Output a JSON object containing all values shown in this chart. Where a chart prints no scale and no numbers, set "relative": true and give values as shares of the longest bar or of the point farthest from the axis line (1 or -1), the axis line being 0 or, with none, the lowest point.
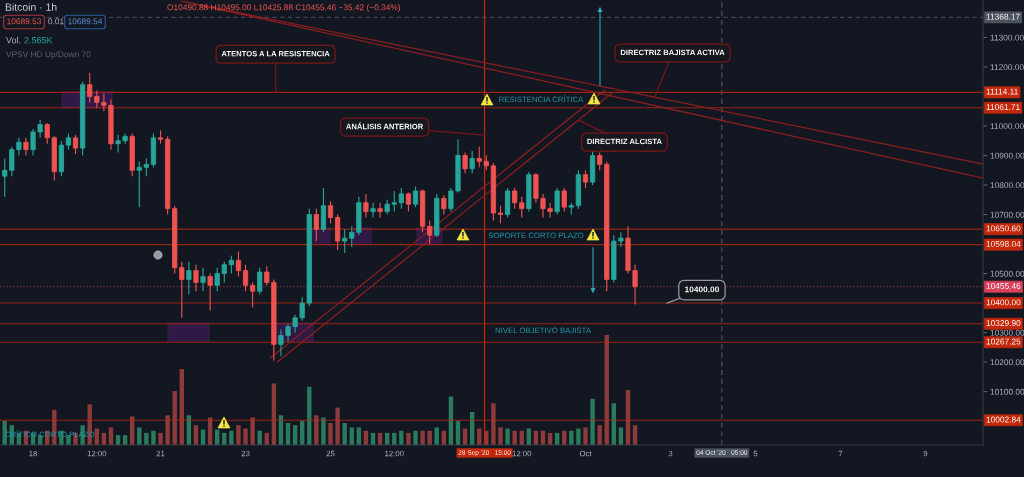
{
  "chart_data": [
    {
      "type": "candlestick",
      "title": "Bitcoin · 1h",
      "x": [
        "2020-09-17T08:00",
        "2020-09-17T12:00",
        "2020-09-17T16:00",
        "2020-09-17T20:00",
        "2020-09-18T00:00",
        "2020-09-18T04:00",
        "2020-09-18T08:00",
        "2020-09-18T12:00",
        "2020-09-18T16:00",
        "2020-09-18T20:00",
        "2020-09-19T00:00",
        "2020-09-19T04:00",
        "2020-09-19T08:00",
        "2020-09-19T12:00",
        "2020-09-19T16:00",
        "2020-09-19T20:00",
        "2020-09-20T00:00",
        "2020-09-20T04:00",
        "2020-09-20T08:00",
        "2020-09-20T12:00",
        "2020-09-20T16:00",
        "2020-09-20T20:00",
        "2020-09-21T00:00",
        "2020-09-21T04:00",
        "2020-09-21T08:00",
        "2020-09-21T12:00",
        "2020-09-21T16:00",
        "2020-09-21T20:00",
        "2020-09-22T00:00",
        "2020-09-22T04:00",
        "2020-09-22T08:00",
        "2020-09-22T12:00",
        "2020-09-22T16:00",
        "2020-09-22T20:00",
        "2020-09-23T00:00",
        "2020-09-23T04:00",
        "2020-09-23T08:00",
        "2020-09-23T12:00",
        "2020-09-23T16:00",
        "2020-09-23T20:00",
        "2020-09-24T00:00",
        "2020-09-24T04:00",
        "2020-09-24T08:00",
        "2020-09-24T12:00",
        "2020-09-24T16:00",
        "2020-09-24T20:00",
        "2020-09-25T00:00",
        "2020-09-25T04:00",
        "2020-09-25T08:00",
        "2020-09-25T12:00",
        "2020-09-25T16:00",
        "2020-09-25T20:00",
        "2020-09-26T00:00",
        "2020-09-26T04:00",
        "2020-09-26T08:00",
        "2020-09-26T12:00",
        "2020-09-26T16:00",
        "2020-09-26T20:00",
        "2020-09-27T00:00",
        "2020-09-27T04:00",
        "2020-09-27T08:00",
        "2020-09-27T12:00",
        "2020-09-27T16:00",
        "2020-09-27T20:00",
        "2020-09-28T00:00",
        "2020-09-28T04:00",
        "2020-09-28T08:00",
        "2020-09-28T12:00",
        "2020-09-28T16:00",
        "2020-09-28T20:00",
        "2020-09-29T00:00",
        "2020-09-29T04:00",
        "2020-09-29T08:00",
        "2020-09-29T12:00",
        "2020-09-29T16:00",
        "2020-09-29T20:00",
        "2020-09-30T00:00",
        "2020-09-30T04:00",
        "2020-09-30T08:00",
        "2020-09-30T12:00",
        "2020-09-30T16:00",
        "2020-09-30T20:00",
        "2020-10-01T00:00",
        "2020-10-01T04:00",
        "2020-10-01T08:00",
        "2020-10-01T12:00",
        "2020-10-01T16:00",
        "2020-10-01T20:00",
        "2020-10-02T00:00",
        "2020-10-02T04:00"
      ],
      "ohlc": [
        [
          10830,
          10890,
          10760,
          10850
        ],
        [
          10850,
          10930,
          10830,
          10920
        ],
        [
          10920,
          10960,
          10900,
          10945
        ],
        [
          10945,
          10960,
          10900,
          10920
        ],
        [
          10920,
          10990,
          10900,
          10980
        ],
        [
          10980,
          11020,
          10960,
          11005
        ],
        [
          11005,
          11010,
          10940,
          10960
        ],
        [
          10960,
          10965,
          10815,
          10845
        ],
        [
          10845,
          10950,
          10830,
          10935
        ],
        [
          10935,
          10975,
          10920,
          10960
        ],
        [
          10960,
          10970,
          10905,
          10925
        ],
        [
          10925,
          11150,
          10900,
          11140
        ],
        [
          11140,
          11180,
          11080,
          11100
        ],
        [
          11100,
          11120,
          11060,
          11080
        ],
        [
          11080,
          11110,
          11050,
          11070
        ],
        [
          11070,
          11090,
          10920,
          10940
        ],
        [
          10940,
          10970,
          10910,
          10950
        ],
        [
          10950,
          10975,
          10940,
          10965
        ],
        [
          10965,
          10975,
          10830,
          10850
        ],
        [
          10850,
          10880,
          10725,
          10860
        ],
        [
          10860,
          10890,
          10830,
          10870
        ],
        [
          10870,
          10975,
          10860,
          10960
        ],
        [
          10960,
          10985,
          10940,
          10955
        ],
        [
          10955,
          10965,
          10700,
          10720
        ],
        [
          10720,
          10730,
          10500,
          10520
        ],
        [
          10520,
          10540,
          10350,
          10480
        ],
        [
          10480,
          10540,
          10430,
          10510
        ],
        [
          10510,
          10530,
          10440,
          10470
        ],
        [
          10470,
          10520,
          10440,
          10490
        ],
        [
          10490,
          10500,
          10375,
          10460
        ],
        [
          10460,
          10520,
          10440,
          10500
        ],
        [
          10500,
          10540,
          10470,
          10530
        ],
        [
          10530,
          10560,
          10500,
          10545
        ],
        [
          10545,
          10575,
          10490,
          10510
        ],
        [
          10510,
          10530,
          10440,
          10460
        ],
        [
          10460,
          10470,
          10385,
          10440
        ],
        [
          10440,
          10520,
          10430,
          10505
        ],
        [
          10505,
          10525,
          10460,
          10470
        ],
        [
          10470,
          10480,
          10205,
          10260
        ],
        [
          10260,
          10310,
          10220,
          10290
        ],
        [
          10290,
          10330,
          10270,
          10320
        ],
        [
          10320,
          10360,
          10300,
          10350
        ],
        [
          10350,
          10420,
          10340,
          10400
        ],
        [
          10400,
          10720,
          10390,
          10700
        ],
        [
          10700,
          10720,
          10610,
          10650
        ],
        [
          10650,
          10790,
          10640,
          10730
        ],
        [
          10730,
          10745,
          10670,
          10690
        ],
        [
          10690,
          10700,
          10580,
          10610
        ],
        [
          10610,
          10650,
          10570,
          10620
        ],
        [
          10620,
          10660,
          10590,
          10640
        ],
        [
          10640,
          10760,
          10630,
          10740
        ],
        [
          10740,
          10770,
          10690,
          10710
        ],
        [
          10710,
          10740,
          10690,
          10720
        ],
        [
          10720,
          10740,
          10690,
          10710
        ],
        [
          10710,
          10750,
          10700,
          10735
        ],
        [
          10735,
          10780,
          10710,
          10740
        ],
        [
          10740,
          10790,
          10720,
          10770
        ],
        [
          10770,
          10775,
          10710,
          10735
        ],
        [
          10735,
          10795,
          10725,
          10780
        ],
        [
          10780,
          10785,
          10640,
          10660
        ],
        [
          10660,
          10680,
          10600,
          10630
        ],
        [
          10630,
          10770,
          10625,
          10755
        ],
        [
          10755,
          10765,
          10700,
          10720
        ],
        [
          10720,
          10790,
          10710,
          10780
        ],
        [
          10780,
          10955,
          10775,
          10900
        ],
        [
          10900,
          10910,
          10840,
          10855
        ],
        [
          10855,
          10915,
          10840,
          10890
        ],
        [
          10890,
          10930,
          10860,
          10880
        ],
        [
          10880,
          10900,
          10850,
          10865
        ],
        [
          10865,
          10875,
          10680,
          10705
        ],
        [
          10705,
          10730,
          10670,
          10700
        ],
        [
          10700,
          10790,
          10690,
          10780
        ],
        [
          10780,
          10790,
          10720,
          10740
        ],
        [
          10740,
          10760,
          10690,
          10720
        ],
        [
          10720,
          10845,
          10710,
          10835
        ],
        [
          10835,
          10840,
          10740,
          10755
        ],
        [
          10755,
          10770,
          10690,
          10720
        ],
        [
          10720,
          10740,
          10690,
          10710
        ],
        [
          10710,
          10790,
          10700,
          10780
        ],
        [
          10780,
          10790,
          10710,
          10725
        ],
        [
          10725,
          10740,
          10700,
          10730
        ],
        [
          10730,
          10850,
          10720,
          10835
        ],
        [
          10835,
          10850,
          10790,
          10810
        ],
        [
          10810,
          10920,
          10800,
          10900
        ],
        [
          10900,
          10910,
          10850,
          10870
        ],
        [
          10870,
          10880,
          10440,
          10480
        ],
        [
          10480,
          10630,
          10470,
          10610
        ],
        [
          10610,
          10640,
          10590,
          10620
        ],
        [
          10620,
          10660,
          10500,
          10510
        ],
        [
          10510,
          10530,
          10395,
          10455.46
        ]
      ],
      "colors": [
        "#26a69a",
        "#26a69a",
        "#26a69a",
        "#ef5350",
        "#26a69a",
        "#26a69a",
        "#ef5350",
        "#ef5350",
        "#26a69a",
        "#26a69a",
        "#ef5350",
        "#26a69a",
        "#ef5350",
        "#ef5350",
        "#ef5350",
        "#ef5350",
        "#26a69a",
        "#26a69a",
        "#ef5350",
        "#26a69a",
        "#26a69a",
        "#26a69a",
        "#ef5350",
        "#ef5350",
        "#ef5350",
        "#ef5350",
        "#26a69a",
        "#ef5350",
        "#26a69a",
        "#ef5350",
        "#26a69a",
        "#26a69a",
        "#26a69a",
        "#ef5350",
        "#ef5350",
        "#ef5350",
        "#26a69a",
        "#ef5350",
        "#ef5350",
        "#26a69a",
        "#26a69a",
        "#26a69a",
        "#26a69a",
        "#26a69a",
        "#ef5350",
        "#26a69a",
        "#ef5350",
        "#ef5350",
        "#26a69a",
        "#26a69a",
        "#26a69a",
        "#ef5350",
        "#26a69a",
        "#ef5350",
        "#26a69a",
        "#26a69a",
        "#26a69a",
        "#ef5350",
        "#26a69a",
        "#ef5350",
        "#ef5350",
        "#26a69a",
        "#ef5350",
        "#26a69a",
        "#26a69a",
        "#ef5350",
        "#26a69a",
        "#ef5350",
        "#ef5350",
        "#ef5350",
        "#ef5350",
        "#26a69a",
        "#ef5350",
        "#ef5350",
        "#26a69a",
        "#ef5350",
        "#ef5350",
        "#ef5350",
        "#26a69a",
        "#ef5350",
        "#26a69a",
        "#26a69a",
        "#ef5350",
        "#26a69a",
        "#ef5350",
        "#ef5350",
        "#26a69a",
        "#26a69a",
        "#ef5350",
        "#ef5350"
      ],
      "series": [
        {
          "type": "line",
          "color": "#8b1e1e",
          "x": [
            "2020-09-21T12:00",
            "2020-10-10T08:00"
          ],
          "values": [
            11423,
            10872
          ]
        },
        {
          "type": "line",
          "color": "#8b1e1e",
          "x": [
            "2020-09-21T22:00",
            "2020-10-10T08:00"
          ],
          "values": [
            11410,
            10824
          ]
        },
        {
          "type": "line",
          "color": "#8b1e1e",
          "x": [
            "2020-09-23T14:00",
            "2020-10-01T11:00"
          ],
          "values": [
            10214,
            11122
          ]
        },
        {
          "type": "line",
          "color": "#8b1e1e",
          "x": [
            "2020-09-23T18:00",
            "2020-10-01T15:00"
          ],
          "values": [
            10200,
            11112
          ]
        }
      ],
      "xlim": [
        "2020-09-17T05:20",
        "2020-10-10T08:30"
      ],
      "ylim": [
        9919,
        11427
      ],
      "xticks": [
        {
          "value": "2020-09-18",
          "label": "18"
        },
        {
          "value": "2020-09-19T12:00",
          "label": "12:00"
        },
        {
          "value": "2020-09-21",
          "label": "21"
        },
        {
          "value": "2020-09-23",
          "label": "23"
        },
        {
          "value": "2020-09-25",
          "label": "25"
        },
        {
          "value": "2020-09-26T12:00",
          "label": "12:00"
        },
        {
          "value": "2020-09-29T12:00",
          "label": "12:00"
        },
        {
          "value": "2020-10-01",
          "label": "Oct"
        },
        {
          "value": "2020-10-03",
          "label": "3"
        },
        {
          "value": "2020-10-05",
          "label": "5"
        },
        {
          "value": "2020-10-07",
          "label": "7"
        },
        {
          "value": "2020-10-09",
          "label": "9"
        }
      ],
      "yticks": [
        {
          "value": 11300,
          "label": "11300.00"
        },
        {
          "value": 11200,
          "label": "11200.00"
        },
        {
          "value": 11000,
          "label": "11000.00"
        },
        {
          "value": 10900,
          "label": "10900.00"
        },
        {
          "value": 10800,
          "label": "10800.00"
        },
        {
          "value": 10700,
          "label": "10700.00"
        },
        {
          "value": 10500,
          "label": "10500.00"
        },
        {
          "value": 10300,
          "label": "10300.00"
        },
        {
          "value": 10200,
          "label": "10200.00"
        },
        {
          "value": 10100,
          "label": "10100.00"
        }
      ],
      "ref_lines": [
        {
          "axis": "y",
          "value": 11368.17,
          "label": "11368.17",
          "color": "#4c525e",
          "line_style": "dashed"
        },
        {
          "axis": "y",
          "value": 11114.11,
          "label": "11114.11",
          "color": "#c4280c"
        },
        {
          "axis": "y",
          "value": 11061.71,
          "label": "11061.71",
          "color": "#c4280c"
        },
        {
          "axis": "y",
          "value": 10650.6,
          "label": "10650.60",
          "color": "#c4280c"
        },
        {
          "axis": "y",
          "value": 10598.04,
          "label": "10598.04",
          "color": "#c4280c"
        },
        {
          "axis": "y",
          "value": 10455.46,
          "label": "10455.46",
          "color": "#d9415a",
          "line_style": "dotted"
        },
        {
          "axis": "y",
          "value": 10400.0,
          "label": "10400.00",
          "color": "#c4280c"
        },
        {
          "axis": "y",
          "value": 10329.9,
          "label": "10329.90",
          "color": "#c4280c"
        },
        {
          "axis": "y",
          "value": 10267.25,
          "label": "10267.25",
          "color": "#c4280c"
        },
        {
          "axis": "y",
          "value": 10002.84,
          "label": "10002.84",
          "color": "#c4280c"
        },
        {
          "axis": "x",
          "value": "2020-09-28T15:00",
          "label": "28 Sep '20   15:00",
          "color": "#c4280c"
        },
        {
          "axis": "x",
          "value": "2020-10-04T05:00",
          "label": "04 Oct '20   05:00",
          "color": "#4c525e",
          "line_style": "dashed"
        }
      ],
      "annotations": [
        "O10490.88 H10495.00 L10425.88 C10455.46 −35.42 (−0.34%)",
        "10689.53",
        "0.01",
        "10689.54",
        "VPSV HD Up/Down 70",
        {
          "text": "ATENTOS A LA RESISTENCIA",
          "x": "2020-09-23T17:00",
          "y": 11114.11
        },
        {
          "text": "DIRECTRIZ BAJISTA ACTIVA",
          "x": "2020-10-02T15:00",
          "y": 11098
        },
        {
          "text": "ANÁLISIS ANTERIOR",
          "x": "2020-09-28T15:00",
          "y": 10969
        },
        {
          "text": "DIRECTRIZ ALCISTA",
          "x": "2020-09-30T20:00",
          "y": 11020
        },
        {
          "text": "10400.00",
          "x": "2020-10-02T22:00",
          "y": 10400
        },
        "RESISTENCIA CRÍTICA",
        "SOPORTE CORTO PLAZO",
        "NIVEL OBJETIVO BAJISTA",
        "CRÍTICO CORTO PLAZO"
      ]
    },
    {
      "type": "bar",
      "title": "Vol.",
      "relative": true,
      "tick_labels": false,
      "x": [
        "2020-09-17T08:00",
        "2020-09-17T12:00",
        "2020-09-17T16:00",
        "2020-09-17T20:00",
        "2020-09-18T00:00",
        "2020-09-18T04:00",
        "2020-09-18T08:00",
        "2020-09-18T12:00",
        "2020-09-18T16:00",
        "2020-09-18T20:00",
        "2020-09-19T00:00",
        "2020-09-19T04:00",
        "2020-09-19T08:00",
        "2020-09-19T12:00",
        "2020-09-19T16:00",
        "2020-09-19T20:00",
        "2020-09-20T00:00",
        "2020-09-20T04:00",
        "2020-09-20T08:00",
        "2020-09-20T12:00",
        "2020-09-20T16:00",
        "2020-09-20T20:00",
        "2020-09-21T00:00",
        "2020-09-21T04:00",
        "2020-09-21T08:00",
        "2020-09-21T12:00",
        "2020-09-21T16:00",
        "2020-09-21T20:00",
        "2020-09-22T00:00",
        "2020-09-22T04:00",
        "2020-09-22T08:00",
        "2020-09-22T12:00",
        "2020-09-22T16:00",
        "2020-09-22T20:00",
        "2020-09-23T00:00",
        "2020-09-23T04:00",
        "2020-09-23T08:00",
        "2020-09-23T12:00",
        "2020-09-23T16:00",
        "2020-09-23T20:00",
        "2020-09-24T00:00",
        "2020-09-24T04:00",
        "2020-09-24T08:00",
        "2020-09-24T12:00",
        "2020-09-24T16:00",
        "2020-09-24T20:00",
        "2020-09-25T00:00",
        "2020-09-25T04:00",
        "2020-09-25T08:00",
        "2020-09-25T12:00",
        "2020-09-25T16:00",
        "2020-09-25T20:00",
        "2020-09-26T00:00",
        "2020-09-26T04:00",
        "2020-09-26T08:00",
        "2020-09-26T12:00",
        "2020-09-26T16:00",
        "2020-09-26T20:00",
        "2020-09-27T00:00",
        "2020-09-27T04:00",
        "2020-09-27T08:00",
        "2020-09-27T12:00",
        "2020-09-27T16:00",
        "2020-09-27T20:00",
        "2020-09-28T00:00",
        "2020-09-28T04:00",
        "2020-09-28T08:00",
        "2020-09-28T12:00",
        "2020-09-28T16:00",
        "2020-09-28T20:00",
        "2020-09-29T00:00",
        "2020-09-29T04:00",
        "2020-09-29T08:00",
        "2020-09-29T12:00",
        "2020-09-29T16:00",
        "2020-09-29T20:00",
        "2020-09-30T00:00",
        "2020-09-30T04:00",
        "2020-09-30T08:00",
        "2020-09-30T12:00",
        "2020-09-30T16:00",
        "2020-09-30T20:00",
        "2020-10-01T00:00",
        "2020-10-01T04:00",
        "2020-10-01T08:00",
        "2020-10-01T12:00",
        "2020-10-01T16:00",
        "2020-10-01T20:00",
        "2020-10-02T00:00",
        "2020-10-02T04:00"
      ],
      "values": [
        0.22,
        0.18,
        0.11,
        0.13,
        0.11,
        0.09,
        0.13,
        0.32,
        0.13,
        0.09,
        0.11,
        0.18,
        0.37,
        0.15,
        0.11,
        0.16,
        0.09,
        0.09,
        0.26,
        0.16,
        0.11,
        0.13,
        0.11,
        0.27,
        0.49,
        0.69,
        0.27,
        0.18,
        0.14,
        0.25,
        0.14,
        0.11,
        0.13,
        0.18,
        0.15,
        0.25,
        0.13,
        0.11,
        0.56,
        0.27,
        0.2,
        0.18,
        0.22,
        0.53,
        0.27,
        0.25,
        0.2,
        0.34,
        0.2,
        0.16,
        0.16,
        0.13,
        0.11,
        0.11,
        0.11,
        0.11,
        0.13,
        0.11,
        0.13,
        0.13,
        0.13,
        0.16,
        0.13,
        0.44,
        0.22,
        0.15,
        0.3,
        0.15,
        0.13,
        0.38,
        0.16,
        0.15,
        0.13,
        0.13,
        0.15,
        0.13,
        0.13,
        0.11,
        0.11,
        0.13,
        0.13,
        0.15,
        0.16,
        0.42,
        0.18,
        1,
        0.38,
        0.16,
        0.5,
        0.18
      ],
      "colors": [
        "#2a7a5e",
        "#2a7a5e",
        "#2a7a5e",
        "#8c3a3a",
        "#2a7a5e",
        "#2a7a5e",
        "#8c3a3a",
        "#8c3a3a",
        "#2a7a5e",
        "#2a7a5e",
        "#8c3a3a",
        "#2a7a5e",
        "#8c3a3a",
        "#8c3a3a",
        "#8c3a3a",
        "#8c3a3a",
        "#2a7a5e",
        "#2a7a5e",
        "#8c3a3a",
        "#2a7a5e",
        "#2a7a5e",
        "#2a7a5e",
        "#8c3a3a",
        "#8c3a3a",
        "#8c3a3a",
        "#8c3a3a",
        "#2a7a5e",
        "#8c3a3a",
        "#2a7a5e",
        "#8c3a3a",
        "#2a7a5e",
        "#2a7a5e",
        "#2a7a5e",
        "#8c3a3a",
        "#8c3a3a",
        "#8c3a3a",
        "#2a7a5e",
        "#8c3a3a",
        "#8c3a3a",
        "#2a7a5e",
        "#2a7a5e",
        "#2a7a5e",
        "#2a7a5e",
        "#2a7a5e",
        "#8c3a3a",
        "#2a7a5e",
        "#8c3a3a",
        "#8c3a3a",
        "#2a7a5e",
        "#2a7a5e",
        "#2a7a5e",
        "#8c3a3a",
        "#2a7a5e",
        "#8c3a3a",
        "#2a7a5e",
        "#2a7a5e",
        "#2a7a5e",
        "#8c3a3a",
        "#2a7a5e",
        "#8c3a3a",
        "#8c3a3a",
        "#2a7a5e",
        "#8c3a3a",
        "#2a7a5e",
        "#2a7a5e",
        "#8c3a3a",
        "#2a7a5e",
        "#8c3a3a",
        "#8c3a3a",
        "#8c3a3a",
        "#8c3a3a",
        "#2a7a5e",
        "#8c3a3a",
        "#8c3a3a",
        "#2a7a5e",
        "#8c3a3a",
        "#8c3a3a",
        "#8c3a3a",
        "#2a7a5e",
        "#8c3a3a",
        "#2a7a5e",
        "#2a7a5e",
        "#8c3a3a",
        "#2a7a5e",
        "#8c3a3a",
        "#8c3a3a",
        "#2a7a5e",
        "#2a7a5e",
        "#8c3a3a",
        "#8c3a3a"
      ],
      "xlim": [
        "2020-09-17T05:20",
        "2020-10-10T08:30"
      ],
      "annotations": [
        "2.565K"
      ]
    }
  ]
}
